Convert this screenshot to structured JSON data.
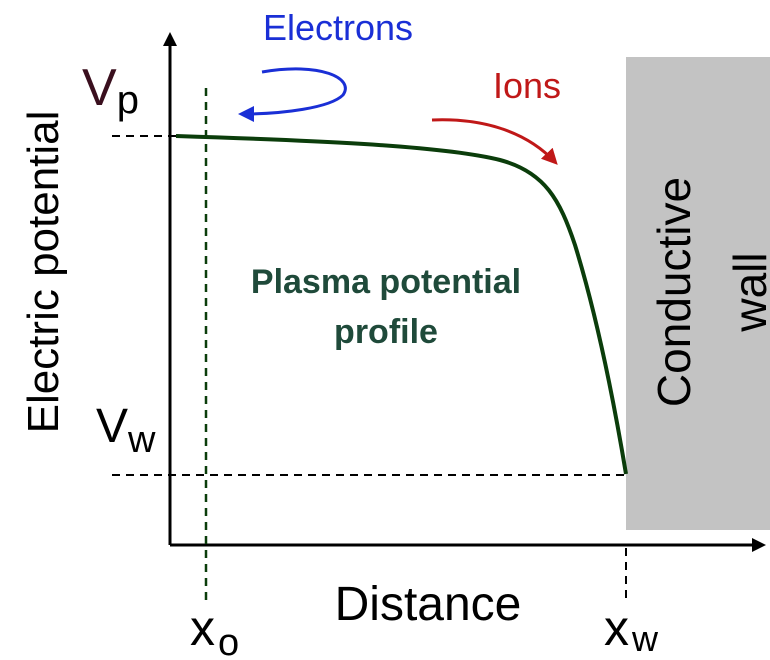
{
  "labels": {
    "y_axis": "Electric potential",
    "x_axis": "Distance",
    "vp_main": "V",
    "vp_sub": "p",
    "vw_main": "V",
    "vw_sub": "w",
    "xo_main": "x",
    "xo_sub": "o",
    "xw_main": "x",
    "xw_sub": "w",
    "wall_line1": "Conductive",
    "wall_line2": "wall",
    "profile_line1": "Plasma potential",
    "profile_line2": "profile",
    "electrons": "Electrons",
    "ions": "Ions"
  },
  "colors": {
    "axis": "#000000",
    "profile_curve": "#0b3d0b",
    "profile_text": "#1f4a3a",
    "electrons": "#1a2fd6",
    "ions": "#c01818",
    "wall_fill": "#c3c3c3",
    "vp_label": "#3a0f1e",
    "xo_line": "#0b3d0b"
  }
}
